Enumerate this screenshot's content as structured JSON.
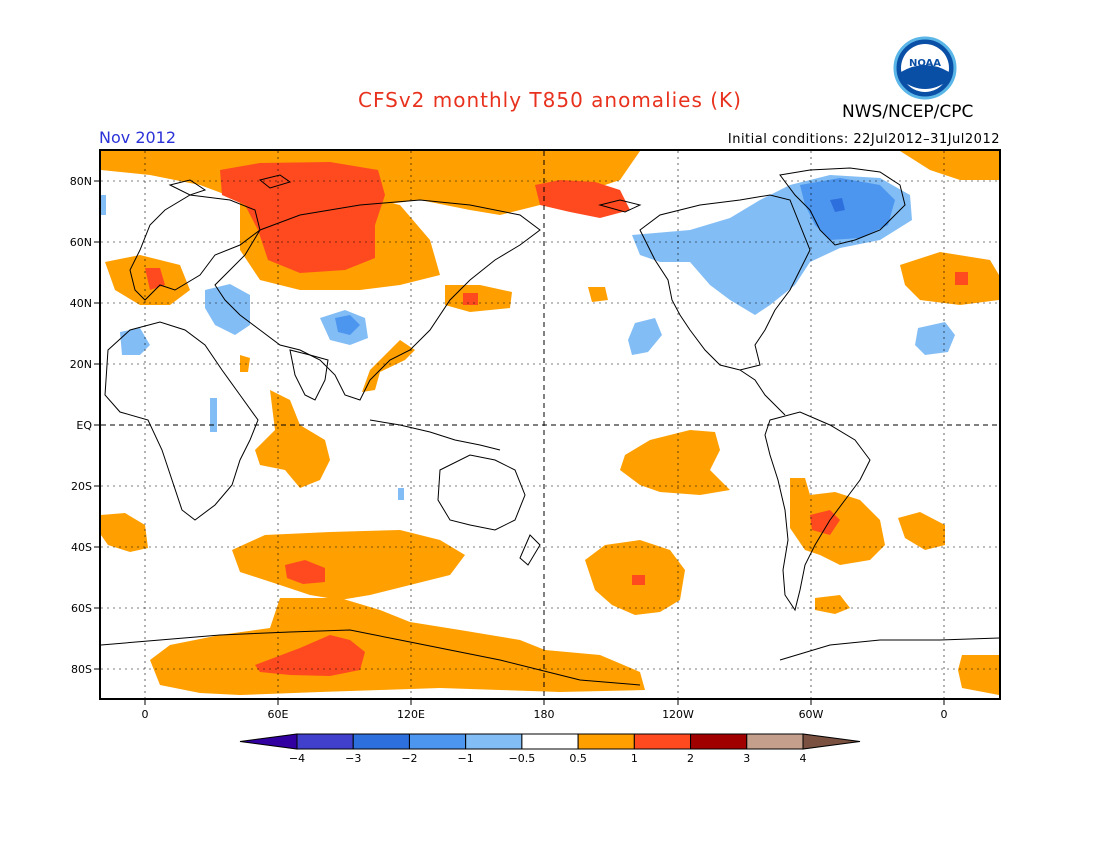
{
  "title": "CFSv2 monthly T850 anomalies (K)",
  "organization": "NWS/NCEP/CPC",
  "logo_text": "NOAA",
  "period": "Nov 2012",
  "initial_conditions": "Initial conditions: 22Jul2012–31Jul2012",
  "lat_ticks": [
    "80N",
    "60N",
    "40N",
    "20N",
    "EQ",
    "20S",
    "40S",
    "60S",
    "80S"
  ],
  "lon_ticks": [
    "0",
    "60E",
    "120E",
    "180",
    "120W",
    "60W",
    "0"
  ],
  "colorbar": {
    "labels": [
      "−4",
      "−3",
      "−2",
      "−1",
      "−0.5",
      "0.5",
      "1",
      "2",
      "3",
      "4"
    ],
    "colors": [
      "#3200a0",
      "#4040cc",
      "#2d6fdc",
      "#4c96f0",
      "#82bdf5",
      "#ffffff",
      "#ff9f00",
      "#ff4a1f",
      "#a00000",
      "#c4a08c",
      "#7a5040"
    ]
  },
  "anomaly_colors": {
    "warm_1": "#ff9f00",
    "warm_2": "#ff4a1f",
    "cool_1": "#82bdf5",
    "cool_2": "#4c96f0",
    "cool_3": "#2d6fdc"
  }
}
